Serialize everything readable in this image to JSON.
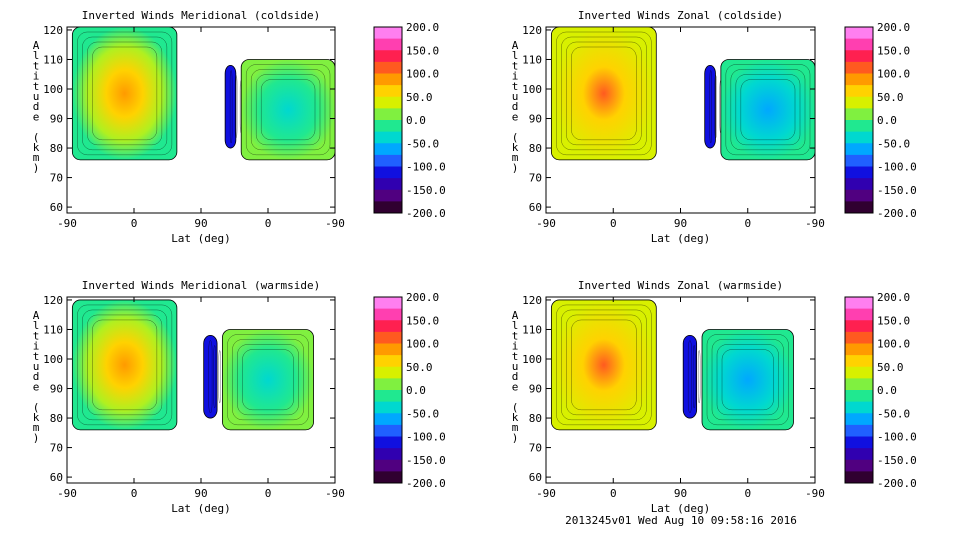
{
  "footer": "2013245v01 Wed Aug 10 09:58:16 2016",
  "chart_data": [
    {
      "type": "heatmap",
      "title": "Inverted Winds Meridional (coldside)",
      "xlabel": "Lat (deg)",
      "ylabel": "Altitude (km)",
      "xticks": [
        "-90",
        "0",
        "90",
        "0",
        "-90"
      ],
      "yticks": [
        "60",
        "70",
        "80",
        "90",
        "100",
        "110",
        "120"
      ],
      "ylim": [
        58,
        121
      ],
      "colorbar": [
        "200.0",
        "150.0",
        "100.0",
        "50.0",
        "0.0",
        "-50.0",
        "-100.0",
        "-150.0",
        "-200.0"
      ],
      "crange": [
        -200,
        200
      ]
    },
    {
      "type": "heatmap",
      "title": "Inverted Winds Zonal (coldside)",
      "xlabel": "Lat (deg)",
      "ylabel": "Altitude (km)",
      "xticks": [
        "-90",
        "0",
        "90",
        "0",
        "-90"
      ],
      "yticks": [
        "60",
        "70",
        "80",
        "90",
        "100",
        "110",
        "120"
      ],
      "ylim": [
        58,
        121
      ],
      "colorbar": [
        "200.0",
        "150.0",
        "100.0",
        "50.0",
        "0.0",
        "-50.0",
        "-100.0",
        "-150.0",
        "-200.0"
      ],
      "crange": [
        -200,
        200
      ]
    },
    {
      "type": "heatmap",
      "title": "Inverted Winds Meridional (warmside)",
      "xlabel": "Lat (deg)",
      "ylabel": "Altitude (km)",
      "xticks": [
        "-90",
        "0",
        "90",
        "0",
        "-90"
      ],
      "yticks": [
        "60",
        "70",
        "80",
        "90",
        "100",
        "110",
        "120"
      ],
      "ylim": [
        58,
        121
      ],
      "colorbar": [
        "200.0",
        "150.0",
        "100.0",
        "50.0",
        "0.0",
        "-50.0",
        "-100.0",
        "-150.0",
        "-200.0"
      ],
      "crange": [
        -200,
        200
      ]
    },
    {
      "type": "heatmap",
      "title": "Inverted Winds Zonal (warmside)",
      "xlabel": "Lat (deg)",
      "ylabel": "Altitude (km)",
      "xticks": [
        "-90",
        "0",
        "90",
        "0",
        "-90"
      ],
      "yticks": [
        "60",
        "70",
        "80",
        "90",
        "100",
        "110",
        "120"
      ],
      "ylim": [
        58,
        121
      ],
      "colorbar": [
        "200.0",
        "150.0",
        "100.0",
        "50.0",
        "0.0",
        "-50.0",
        "-100.0",
        "-150.0",
        "-200.0"
      ],
      "crange": [
        -200,
        200
      ]
    }
  ]
}
